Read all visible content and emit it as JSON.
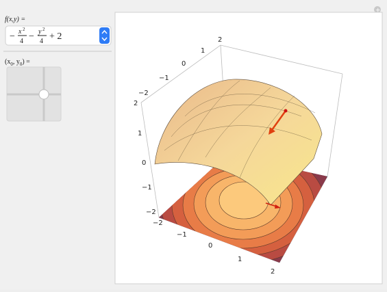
{
  "controls": {
    "function_label": "f(x,y) =",
    "formula": {
      "sign1": "−",
      "num1": "x",
      "exp1": "2",
      "den1": "4",
      "sign2": "−",
      "num2": "y",
      "exp2": "2",
      "den2": "4",
      "tail": "+ 2"
    },
    "point_label": {
      "open": "(x",
      "sub1": "0",
      "mid": ", y",
      "sub2": "0",
      "close": ") ="
    }
  },
  "plot": {
    "back_axis_ticks": [
      "−2",
      "−1",
      "0",
      "1",
      "2"
    ],
    "vertical_axis_ticks": [
      "−2",
      "−1",
      "0",
      "1",
      "2"
    ],
    "front_axis_ticks": [
      "−2",
      "−1",
      "0",
      "1",
      "2"
    ]
  }
}
